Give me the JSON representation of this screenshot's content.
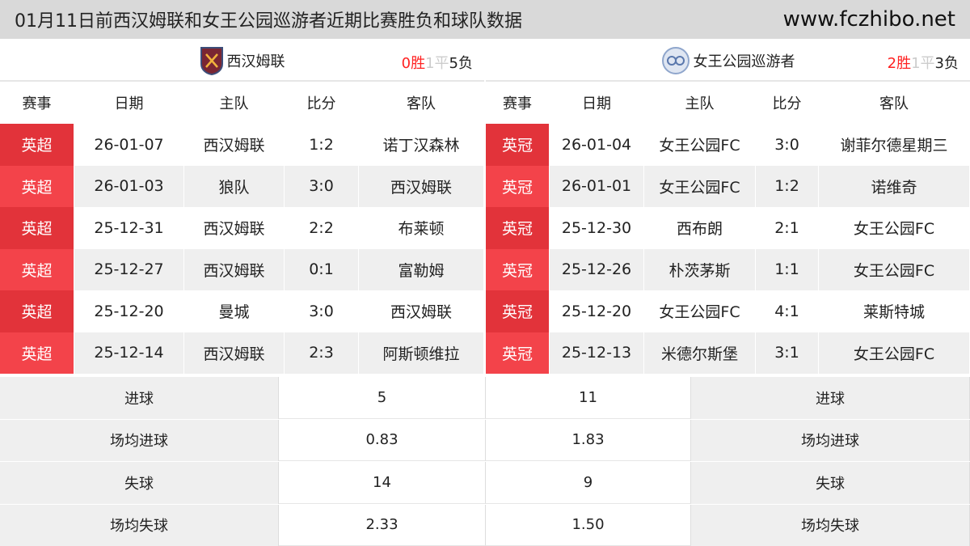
{
  "title": "01月11日前西汉姆联和女王公园巡游者近期比赛胜负和球队数据",
  "site": "www.fczhibo.net",
  "headers": [
    "赛事",
    "日期",
    "主队",
    "比分",
    "客队"
  ],
  "colors": {
    "badge": "#f3434a",
    "win": "#ff2222",
    "draw": "#cccccc"
  },
  "left": {
    "team": "西汉姆联",
    "logo": "west-ham-crest-icon",
    "wins": "0胜",
    "draws": "1平",
    "losses": "5负",
    "matches": [
      [
        "英超",
        "26-01-07",
        "西汉姆联",
        "1:2",
        "诺丁汉森林"
      ],
      [
        "英超",
        "26-01-03",
        "狼队",
        "3:0",
        "西汉姆联"
      ],
      [
        "英超",
        "25-12-31",
        "西汉姆联",
        "2:2",
        "布莱顿"
      ],
      [
        "英超",
        "25-12-27",
        "西汉姆联",
        "0:1",
        "富勒姆"
      ],
      [
        "英超",
        "25-12-20",
        "曼城",
        "3:0",
        "西汉姆联"
      ],
      [
        "英超",
        "25-12-14",
        "西汉姆联",
        "2:3",
        "阿斯顿维拉"
      ]
    ]
  },
  "right": {
    "team": "女王公园巡游者",
    "logo": "qpr-crest-icon",
    "wins": "2胜",
    "draws": "1平",
    "losses": "3负",
    "matches": [
      [
        "英冠",
        "26-01-04",
        "女王公园FC",
        "3:0",
        "谢菲尔德星期三"
      ],
      [
        "英冠",
        "26-01-01",
        "女王公园FC",
        "1:2",
        "诺维奇"
      ],
      [
        "英冠",
        "25-12-30",
        "西布朗",
        "2:1",
        "女王公园FC"
      ],
      [
        "英冠",
        "25-12-26",
        "朴茨茅斯",
        "1:1",
        "女王公园FC"
      ],
      [
        "英冠",
        "25-12-20",
        "女王公园FC",
        "4:1",
        "莱斯特城"
      ],
      [
        "英冠",
        "25-12-13",
        "米德尔斯堡",
        "3:1",
        "女王公园FC"
      ]
    ]
  },
  "stats": [
    {
      "label": "进球",
      "left": "5",
      "right": "11"
    },
    {
      "label": "场均进球",
      "left": "0.83",
      "right": "1.83"
    },
    {
      "label": "失球",
      "left": "14",
      "right": "9"
    },
    {
      "label": "场均失球",
      "left": "2.33",
      "right": "1.50"
    }
  ]
}
